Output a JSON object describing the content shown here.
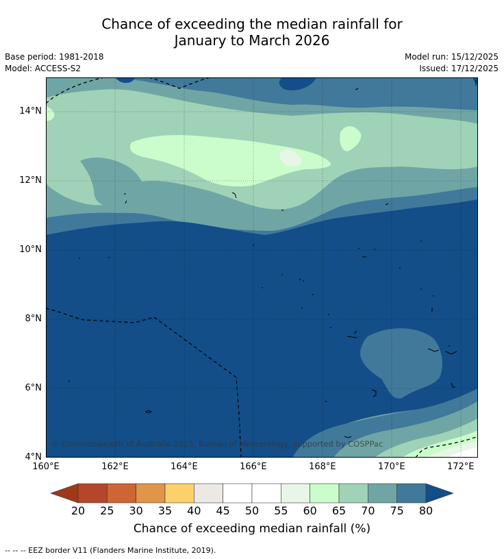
{
  "title": {
    "line1": "Chance of exceeding the median rainfall for",
    "line2": "January to March 2026"
  },
  "meta": {
    "base_period": "Base period: 1981-2018",
    "model": "Model: ACCESS-S2",
    "model_run": "Model run: 15/12/2025",
    "issued": "Issued: 17/12/2025"
  },
  "map": {
    "lat_range": [
      4,
      15
    ],
    "lon_range": [
      160,
      172.5
    ],
    "lat_ticks": [
      "14°N",
      "12°N",
      "10°N",
      "8°N",
      "6°N",
      "4°N"
    ],
    "lon_ticks": [
      "160°E",
      "162°E",
      "164°E",
      "166°E",
      "168°E",
      "170°E",
      "172°E"
    ],
    "copyright": "© Commonwealth of Australia 2025, Bureau of Meteorology, supported by COSPPac"
  },
  "colorbar": {
    "labels": [
      "20",
      "25",
      "30",
      "35",
      "40",
      "45",
      "50",
      "55",
      "60",
      "65",
      "70",
      "75",
      "80"
    ],
    "colors": [
      "#a0391a",
      "#b5462a",
      "#cd6634",
      "#e09549",
      "#fcd16c",
      "#ece8e4",
      "#ffffff",
      "#ffffff",
      "#e8f6e7",
      "#cbfccb",
      "#9fd2b7",
      "#6fa6a5",
      "#41799b",
      "#134e89"
    ],
    "title": "Chance of exceeding median rainfall (%)"
  },
  "footer": "--  --  -- EEZ border V11 (Flanders Marine Institute, 2019)."
}
